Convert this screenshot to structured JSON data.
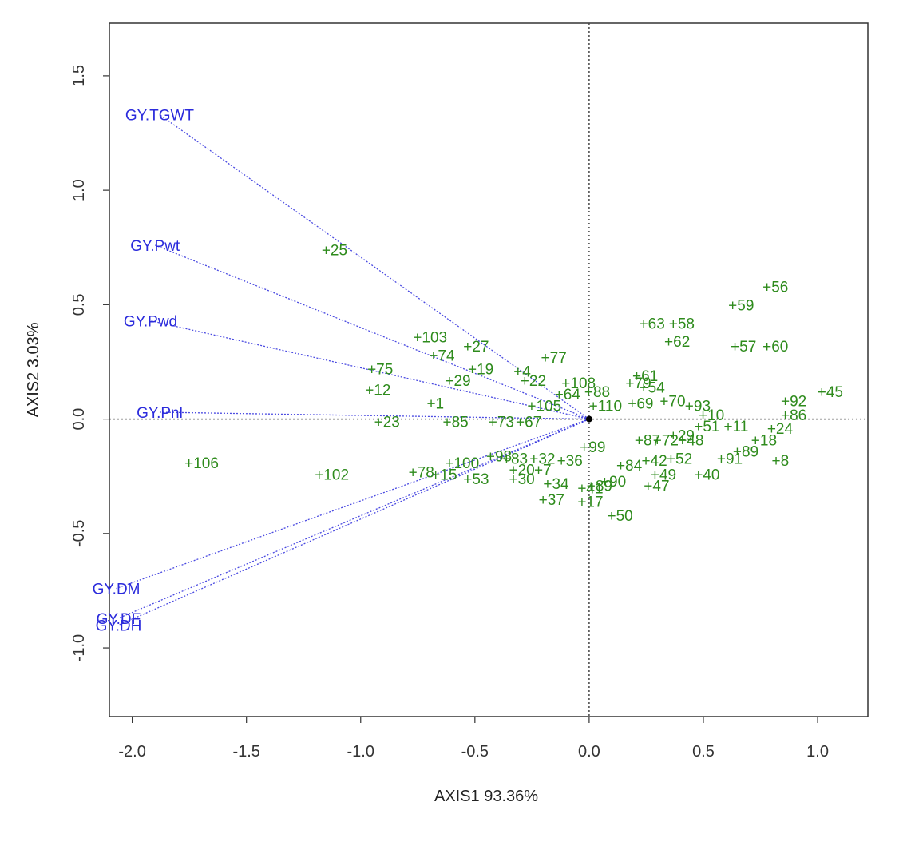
{
  "chart_data": {
    "type": "scatter",
    "title": "",
    "xlabel": "AXIS1 93.36%",
    "ylabel": "AXIS2 3.03%",
    "xlim": [
      -2.1,
      1.22
    ],
    "ylim": [
      -1.3,
      1.73
    ],
    "xticks": [
      "-2.0",
      "-1.5",
      "-1.0",
      "-0.5",
      "0.0",
      "0.5",
      "1.0"
    ],
    "xtick_values": [
      -2.0,
      -1.5,
      -1.0,
      -0.5,
      0.0,
      0.5,
      1.0
    ],
    "yticks": [
      "-1.0",
      "-0.5",
      "0.0",
      "0.5",
      "1.0",
      "1.5"
    ],
    "ytick_values": [
      -1.0,
      -0.5,
      0.0,
      0.5,
      1.0,
      1.5
    ],
    "grid": false,
    "reference_lines": "dotted lines at x=0 and y=0",
    "colors": {
      "vectors": "#2b2bdc",
      "points": "#2e8b1c",
      "frame": "#333333"
    },
    "vectors": [
      {
        "name": "GY.TGWT",
        "x": -1.88,
        "y": 1.33
      },
      {
        "name": "GY.Pwt",
        "x": -1.9,
        "y": 0.76
      },
      {
        "name": "GY.Pwd",
        "x": -1.92,
        "y": 0.43
      },
      {
        "name": "GY.Pnl",
        "x": -1.88,
        "y": 0.03
      },
      {
        "name": "GY.DM",
        "x": -2.07,
        "y": -0.74
      },
      {
        "name": "GY.DF",
        "x": -2.06,
        "y": -0.87
      },
      {
        "name": "GY.DH",
        "x": -2.06,
        "y": -0.9
      }
    ],
    "points": [
      {
        "label": "+25",
        "x": -1.15,
        "y": 0.74
      },
      {
        "label": "+106",
        "x": -1.75,
        "y": -0.19
      },
      {
        "label": "+102",
        "x": -1.18,
        "y": -0.24
      },
      {
        "label": "+103",
        "x": -0.75,
        "y": 0.36
      },
      {
        "label": "+27",
        "x": -0.53,
        "y": 0.32
      },
      {
        "label": "+74",
        "x": -0.68,
        "y": 0.28
      },
      {
        "label": "+75",
        "x": -0.95,
        "y": 0.22
      },
      {
        "label": "+12",
        "x": -0.96,
        "y": 0.13
      },
      {
        "label": "+23",
        "x": -0.92,
        "y": -0.01
      },
      {
        "label": "+19",
        "x": -0.51,
        "y": 0.22
      },
      {
        "label": "+29",
        "x": -0.61,
        "y": 0.17
      },
      {
        "label": "+1",
        "x": -0.69,
        "y": 0.07
      },
      {
        "label": "+85",
        "x": -0.62,
        "y": -0.01
      },
      {
        "label": "+4",
        "x": -0.31,
        "y": 0.21
      },
      {
        "label": "+22",
        "x": -0.28,
        "y": 0.17
      },
      {
        "label": "+77",
        "x": -0.19,
        "y": 0.27
      },
      {
        "label": "+108",
        "x": -0.1,
        "y": 0.16
      },
      {
        "label": "+64",
        "x": -0.13,
        "y": 0.11
      },
      {
        "label": "+88",
        "x": 0.0,
        "y": 0.12
      },
      {
        "label": "+105",
        "x": -0.25,
        "y": 0.06
      },
      {
        "label": "+110",
        "x": 0.02,
        "y": 0.06
      },
      {
        "label": "+73",
        "x": -0.42,
        "y": -0.01
      },
      {
        "label": "+67",
        "x": -0.3,
        "y": -0.01
      },
      {
        "label": "+78",
        "x": -0.77,
        "y": -0.23
      },
      {
        "label": "+15",
        "x": -0.67,
        "y": -0.24
      },
      {
        "label": "+53",
        "x": -0.53,
        "y": -0.26
      },
      {
        "label": "+100",
        "x": -0.61,
        "y": -0.19
      },
      {
        "label": "+98",
        "x": -0.43,
        "y": -0.16
      },
      {
        "label": "+83",
        "x": -0.36,
        "y": -0.17
      },
      {
        "label": "+32",
        "x": -0.24,
        "y": -0.17
      },
      {
        "label": "+20",
        "x": -0.33,
        "y": -0.22
      },
      {
        "label": "+7",
        "x": -0.22,
        "y": -0.22
      },
      {
        "label": "+30",
        "x": -0.33,
        "y": -0.26
      },
      {
        "label": "+34",
        "x": -0.18,
        "y": -0.28
      },
      {
        "label": "+36",
        "x": -0.12,
        "y": -0.18
      },
      {
        "label": "+37",
        "x": -0.2,
        "y": -0.35
      },
      {
        "label": "+17",
        "x": -0.03,
        "y": -0.36
      },
      {
        "label": "+41",
        "x": -0.03,
        "y": -0.3
      },
      {
        "label": "+89",
        "x": 0.01,
        "y": -0.29
      },
      {
        "label": "+90",
        "x": 0.07,
        "y": -0.27
      },
      {
        "label": "+99",
        "x": -0.02,
        "y": -0.12
      },
      {
        "label": "+50",
        "x": 0.1,
        "y": -0.42
      },
      {
        "label": "+84",
        "x": 0.14,
        "y": -0.2
      },
      {
        "label": "+42",
        "x": 0.25,
        "y": -0.18
      },
      {
        "label": "+49",
        "x": 0.29,
        "y": -0.24
      },
      {
        "label": "+47",
        "x": 0.26,
        "y": -0.29
      },
      {
        "label": "+52",
        "x": 0.36,
        "y": -0.17
      },
      {
        "label": "+40",
        "x": 0.48,
        "y": -0.24
      },
      {
        "label": "+91",
        "x": 0.58,
        "y": -0.17
      },
      {
        "label": "+89",
        "x": 0.65,
        "y": -0.14
      },
      {
        "label": "+8",
        "x": 0.82,
        "y": -0.18
      },
      {
        "label": "+18",
        "x": 0.73,
        "y": -0.09
      },
      {
        "label": "+24",
        "x": 0.8,
        "y": -0.04
      },
      {
        "label": "+86",
        "x": 0.86,
        "y": 0.02
      },
      {
        "label": "+92",
        "x": 0.86,
        "y": 0.08
      },
      {
        "label": "+45",
        "x": 1.02,
        "y": 0.12
      },
      {
        "label": "+11",
        "x": 0.61,
        "y": -0.03
      },
      {
        "label": "+51",
        "x": 0.48,
        "y": -0.03
      },
      {
        "label": "+10",
        "x": 0.5,
        "y": 0.02
      },
      {
        "label": "+93",
        "x": 0.44,
        "y": 0.06
      },
      {
        "label": "+70",
        "x": 0.33,
        "y": 0.08
      },
      {
        "label": "+48",
        "x": 0.41,
        "y": -0.09
      },
      {
        "label": "+29",
        "x": 0.37,
        "y": -0.07
      },
      {
        "label": "+72",
        "x": 0.3,
        "y": -0.09
      },
      {
        "label": "+87",
        "x": 0.22,
        "y": -0.09
      },
      {
        "label": "+69",
        "x": 0.19,
        "y": 0.07
      },
      {
        "label": "+79",
        "x": 0.18,
        "y": 0.16
      },
      {
        "label": "+61",
        "x": 0.21,
        "y": 0.19
      },
      {
        "label": "+54",
        "x": 0.24,
        "y": 0.14
      },
      {
        "label": "+63",
        "x": 0.24,
        "y": 0.42
      },
      {
        "label": "+58",
        "x": 0.37,
        "y": 0.42
      },
      {
        "label": "+62",
        "x": 0.35,
        "y": 0.34
      },
      {
        "label": "+59",
        "x": 0.63,
        "y": 0.5
      },
      {
        "label": "+56",
        "x": 0.78,
        "y": 0.58
      },
      {
        "label": "+57",
        "x": 0.64,
        "y": 0.32
      },
      {
        "label": "+60",
        "x": 0.78,
        "y": 0.32
      }
    ],
    "origin_marker": {
      "x": 0.0,
      "y": 0.0
    }
  }
}
